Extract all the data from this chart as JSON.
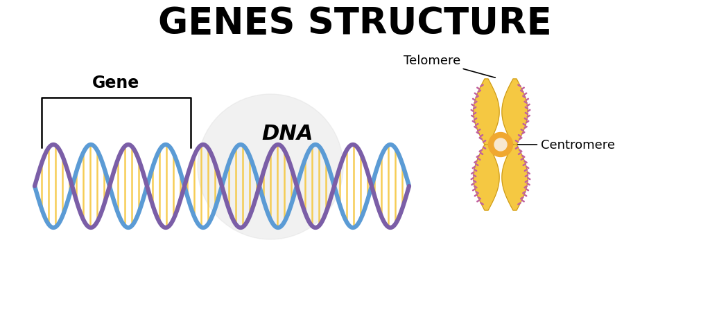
{
  "title": "GENES STRUCTURE",
  "title_fontsize": 38,
  "title_fontweight": "bold",
  "background_color": "#ffffff",
  "dna_color_purple": "#7B5EA7",
  "dna_color_blue": "#5B9BD5",
  "dna_color_yellow": "#F5C842",
  "chromosome_body_color": "#F5C842",
  "chromosome_zigzag_color": "#C060A0",
  "centromere_color": "#F0A830",
  "centromere_inner_color": "#F8E8D0",
  "gene_label": "Gene",
  "dna_label": "DNA",
  "telomere_label": "Telomere",
  "centromere_label": "Centromere",
  "xlim": [
    0,
    10.24
  ],
  "ylim": [
    0,
    4.52
  ]
}
